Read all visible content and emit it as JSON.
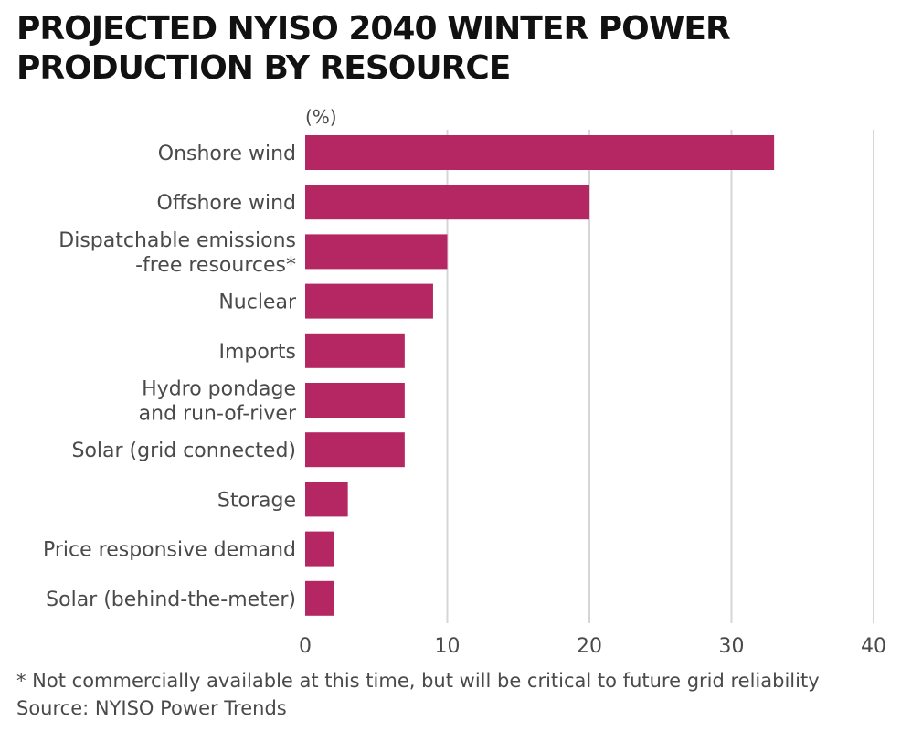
{
  "title_lines": [
    "PROJECTED NYISO 2040 WINTER POWER",
    "PRODUCTION BY RESOURCE"
  ],
  "footnote": "* Not commercially available at this time, but will be critical to future grid reliability",
  "source": "Source: NYISO Power Trends",
  "colors": {
    "bar": "#b52762",
    "grid": "#d6d6d6",
    "text": "#4a4a4a",
    "title": "#111111"
  },
  "chart_data": {
    "type": "bar",
    "orientation": "horizontal",
    "unit_label": "(%)",
    "categories": [
      [
        "Onshore wind"
      ],
      [
        "Offshore wind"
      ],
      [
        "Dispatchable emissions",
        "-free resources*"
      ],
      [
        "Nuclear"
      ],
      [
        "Imports"
      ],
      [
        "Hydro pondage",
        "and run-of-river"
      ],
      [
        "Solar (grid connected)"
      ],
      [
        "Storage"
      ],
      [
        "Price responsive demand"
      ],
      [
        "Solar (behind-the-meter)"
      ]
    ],
    "values": [
      33,
      20,
      10,
      9,
      7,
      7,
      7,
      3,
      2,
      2
    ],
    "xlim": [
      0,
      40
    ],
    "ticks": [
      0,
      10,
      20,
      30,
      40
    ],
    "grid": true
  }
}
